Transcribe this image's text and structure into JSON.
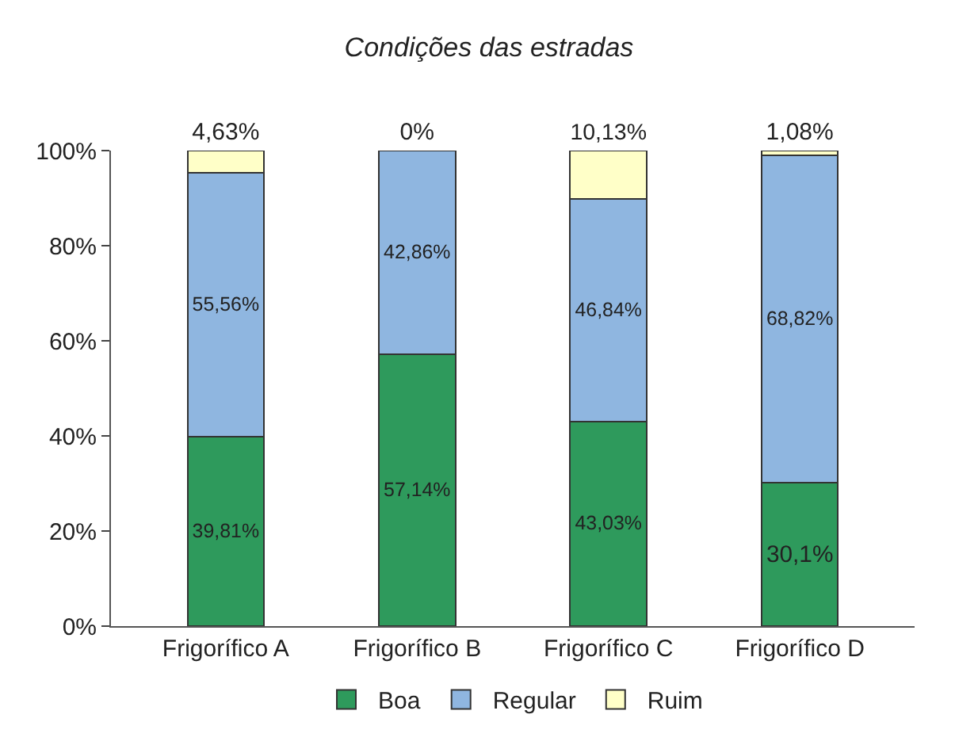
{
  "chart_data": {
    "type": "bar",
    "stacked": true,
    "title": "Condições das estradas",
    "categories": [
      "Frigorífico A",
      "Frigorífico B",
      "Frigorífico C",
      "Frigorífico D"
    ],
    "series": [
      {
        "name": "Boa",
        "color": "#2e9a5c",
        "values": [
          39.81,
          57.14,
          43.03,
          30.1
        ],
        "value_labels": [
          "39,81%",
          "57,14%",
          "43,03%",
          "30,1%"
        ]
      },
      {
        "name": "Regular",
        "color": "#8fb6e0",
        "values": [
          55.56,
          42.86,
          46.84,
          68.82
        ],
        "value_labels": [
          "55,56%",
          "42,86%",
          "46,84%",
          "68,82%"
        ]
      },
      {
        "name": "Ruim",
        "color": "#ffffc8",
        "values": [
          4.63,
          0,
          10.13,
          1.08
        ],
        "value_labels": [
          "4,63%",
          "0%",
          "10,13%",
          "1,08%"
        ]
      }
    ],
    "ylim": [
      0,
      100
    ],
    "yticks": [
      {
        "value": 0,
        "label": "0%"
      },
      {
        "value": 20,
        "label": "20%"
      },
      {
        "value": 40,
        "label": "40%"
      },
      {
        "value": 60,
        "label": "60%"
      },
      {
        "value": 80,
        "label": "80%"
      },
      {
        "value": 100,
        "label": "100%"
      }
    ],
    "legend": "bottom"
  }
}
